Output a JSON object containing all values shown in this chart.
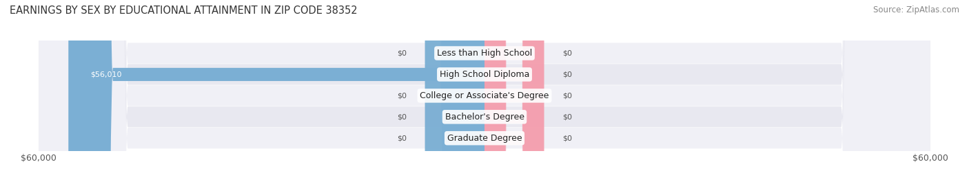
{
  "title": "EARNINGS BY SEX BY EDUCATIONAL ATTAINMENT IN ZIP CODE 38352",
  "source": "Source: ZipAtlas.com",
  "categories": [
    "Less than High School",
    "High School Diploma",
    "College or Associate's Degree",
    "Bachelor's Degree",
    "Graduate Degree"
  ],
  "male_values": [
    0,
    56010,
    0,
    0,
    0
  ],
  "female_values": [
    0,
    0,
    0,
    0,
    0
  ],
  "xlim": 60000,
  "male_color": "#7bafd4",
  "female_color": "#f4a0b0",
  "row_bg_even": "#f0f0f6",
  "row_bg_odd": "#e8e8f0",
  "title_fontsize": 10.5,
  "source_fontsize": 8.5,
  "tick_fontsize": 9,
  "legend_fontsize": 9,
  "value_label_fontsize": 8,
  "category_fontsize": 9
}
